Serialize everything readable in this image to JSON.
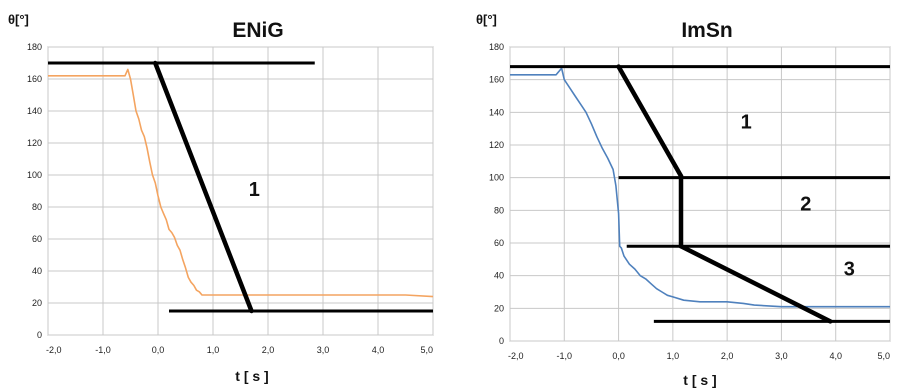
{
  "chart_data": [
    {
      "type": "line",
      "title": "ENiG",
      "ylabel": "θ[°]",
      "xlabel": "t [ s ]",
      "xlim": [
        -2,
        5
      ],
      "ylim": [
        0,
        180
      ],
      "x_ticks": [
        "-2,0",
        "-1,0",
        "0,0",
        "1,0",
        "2,0",
        "3,0",
        "4,0",
        "5,0"
      ],
      "y_ticks": [
        "0",
        "20",
        "40",
        "60",
        "80",
        "100",
        "120",
        "140",
        "160",
        "180"
      ],
      "grid": true,
      "series": [
        {
          "color": "#F4A460",
          "x": [
            -2.0,
            -0.6,
            -0.55,
            -0.5,
            -0.45,
            -0.4,
            -0.35,
            -0.3,
            -0.25,
            -0.2,
            -0.15,
            -0.1,
            -0.05,
            0.0,
            0.05,
            0.1,
            0.15,
            0.2,
            0.25,
            0.3,
            0.35,
            0.4,
            0.45,
            0.5,
            0.55,
            0.6,
            0.65,
            0.7,
            0.75,
            0.8,
            0.85,
            1.0,
            2.0,
            3.0,
            4.0,
            4.5,
            5.0
          ],
          "y": [
            162,
            162,
            166,
            160,
            150,
            140,
            135,
            128,
            124,
            117,
            108,
            100,
            95,
            87,
            80,
            76,
            72,
            66,
            64,
            61,
            56,
            53,
            47,
            42,
            36,
            33,
            31,
            28,
            27,
            25,
            25,
            25,
            25,
            25,
            25,
            25,
            24
          ]
        }
      ],
      "annotations": [
        {
          "kind": "hline",
          "y": 170,
          "x1": -2.0,
          "x2": 2.85
        },
        {
          "kind": "hline",
          "y": 15,
          "x1": 0.2,
          "x2": 5.0
        },
        {
          "kind": "segment",
          "from": [
            -0.05,
            170
          ],
          "to": [
            1.7,
            15
          ]
        },
        {
          "kind": "label",
          "text": "1",
          "x": 1.75,
          "y": 87
        }
      ]
    },
    {
      "type": "line",
      "title": "ImSn",
      "ylabel": "θ[°]",
      "xlabel": "t [ s ]",
      "xlim": [
        -2,
        5
      ],
      "ylim": [
        0,
        180
      ],
      "x_ticks": [
        "-2,0",
        "-1,0",
        "0,0",
        "1,0",
        "2,0",
        "3,0",
        "4,0",
        "5,0"
      ],
      "y_ticks": [
        "0",
        "20",
        "40",
        "60",
        "80",
        "100",
        "120",
        "140",
        "160",
        "180"
      ],
      "grid": true,
      "series": [
        {
          "color": "#4F81BD",
          "x": [
            -2.0,
            -1.15,
            -1.05,
            -1.0,
            -0.9,
            -0.8,
            -0.7,
            -0.6,
            -0.5,
            -0.4,
            -0.3,
            -0.2,
            -0.1,
            -0.05,
            0.0,
            0.02,
            0.05,
            0.1,
            0.2,
            0.3,
            0.4,
            0.5,
            0.6,
            0.7,
            0.8,
            0.9,
            1.0,
            1.2,
            1.5,
            2.0,
            2.3,
            2.5,
            3.0,
            4.0,
            5.0
          ],
          "y": [
            163,
            163,
            167,
            160,
            155,
            150,
            145,
            140,
            133,
            125,
            118,
            112,
            105,
            95,
            78,
            58,
            57,
            52,
            47,
            44,
            40,
            38,
            35,
            32,
            30,
            28,
            27,
            25,
            24,
            24,
            23,
            22,
            21,
            21,
            21
          ]
        }
      ],
      "annotations": [
        {
          "kind": "hline",
          "y": 168,
          "x1": -2.0,
          "x2": 5.0
        },
        {
          "kind": "hline",
          "y": 100,
          "x1": 0.0,
          "x2": 5.0
        },
        {
          "kind": "hline",
          "y": 58,
          "x1": 0.15,
          "x2": 5.0
        },
        {
          "kind": "hline",
          "y": 12,
          "x1": 0.65,
          "x2": 5.0
        },
        {
          "kind": "segment",
          "from": [
            0.0,
            168
          ],
          "to": [
            1.15,
            101
          ]
        },
        {
          "kind": "segment",
          "from": [
            1.15,
            101
          ],
          "to": [
            1.15,
            58
          ]
        },
        {
          "kind": "segment",
          "from": [
            1.15,
            58
          ],
          "to": [
            3.9,
            12
          ]
        },
        {
          "kind": "label",
          "text": "1",
          "x": 2.35,
          "y": 130
        },
        {
          "kind": "label",
          "text": "2",
          "x": 3.45,
          "y": 80
        },
        {
          "kind": "label",
          "text": "3",
          "x": 4.25,
          "y": 40
        }
      ]
    }
  ]
}
